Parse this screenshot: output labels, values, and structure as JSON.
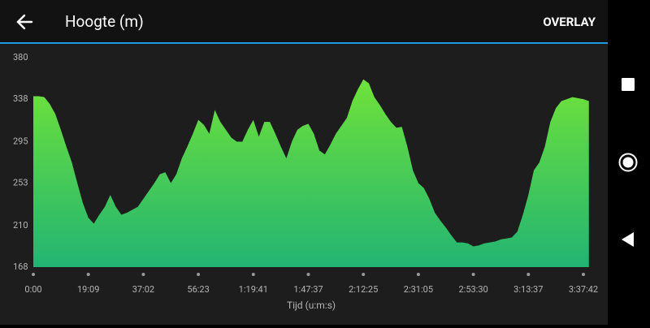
{
  "header": {
    "title": "Hoogte (m)",
    "action": "OVERLAY"
  },
  "chart_data": {
    "type": "area",
    "x_label": "Tijd (u:m:s)",
    "categories": [
      "0:00",
      null,
      null,
      null,
      null,
      null,
      null,
      null,
      null,
      null,
      "19:09",
      null,
      null,
      null,
      null,
      null,
      null,
      null,
      null,
      null,
      "37:02",
      null,
      null,
      null,
      null,
      null,
      null,
      null,
      null,
      null,
      "56:23",
      null,
      null,
      null,
      null,
      null,
      null,
      null,
      null,
      null,
      "1:19:41",
      null,
      null,
      null,
      null,
      null,
      null,
      null,
      null,
      null,
      "1:47:37",
      null,
      null,
      null,
      null,
      null,
      null,
      null,
      null,
      null,
      "2:12:25",
      null,
      null,
      null,
      null,
      null,
      null,
      null,
      null,
      null,
      "2:31:05",
      null,
      null,
      null,
      null,
      null,
      null,
      null,
      null,
      null,
      "2:53:30",
      null,
      null,
      null,
      null,
      null,
      null,
      null,
      null,
      null,
      "3:13:37",
      null,
      null,
      null,
      null,
      null,
      null,
      null,
      null,
      null,
      "3:37:42",
      null
    ],
    "values": [
      341,
      341,
      340,
      333,
      323,
      307,
      290,
      274,
      253,
      233,
      218,
      212,
      221,
      229,
      241,
      229,
      221,
      223,
      226,
      229,
      237,
      245,
      253,
      262,
      264,
      253,
      262,
      278,
      290,
      303,
      317,
      312,
      303,
      327,
      315,
      307,
      299,
      295,
      295,
      307,
      317,
      300,
      315,
      315,
      303,
      290,
      278,
      295,
      307,
      311,
      313,
      303,
      286,
      282,
      292,
      303,
      311,
      319,
      336,
      348,
      358,
      354,
      340,
      332,
      323,
      315,
      309,
      310,
      290,
      266,
      253,
      248,
      237,
      223,
      215,
      208,
      200,
      193,
      193,
      192,
      189,
      190,
      192,
      193,
      194,
      196,
      197,
      198,
      204,
      221,
      241,
      266,
      274,
      290,
      315,
      329,
      336,
      338,
      340,
      339,
      338,
      336
    ],
    "ylim": [
      168,
      380
    ],
    "yticks": [
      168,
      210,
      253,
      295,
      338,
      380
    ],
    "color_top": "#6fe23a",
    "color_bottom": "#22b473"
  }
}
